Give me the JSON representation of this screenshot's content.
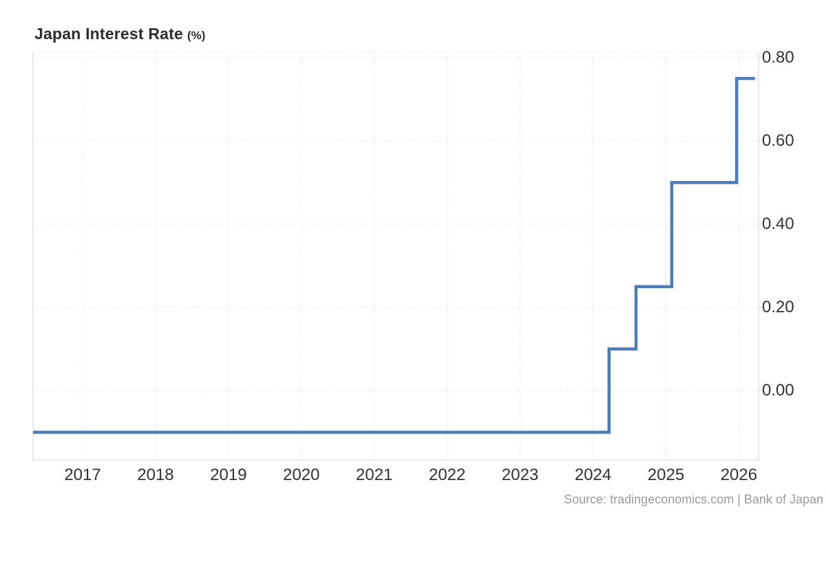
{
  "header": {
    "title": "Japan Interest Rate",
    "unit": "(%)"
  },
  "footer": {
    "source": "Source: tradingeconomics.com | Bank of Japan"
  },
  "chart_data": {
    "type": "line",
    "step": true,
    "title": "Japan Interest Rate (%)",
    "xlabel": "",
    "ylabel": "%",
    "legend": "none",
    "grid": true,
    "xlim": [
      2016.32,
      2026.27
    ],
    "ylim": [
      -0.167,
      0.813
    ],
    "x_ticks": [
      {
        "v": 2017,
        "label": "2017"
      },
      {
        "v": 2018,
        "label": "2018"
      },
      {
        "v": 2019,
        "label": "2019"
      },
      {
        "v": 2020,
        "label": "2020"
      },
      {
        "v": 2021,
        "label": "2021"
      },
      {
        "v": 2022,
        "label": "2022"
      },
      {
        "v": 2023,
        "label": "2023"
      },
      {
        "v": 2024,
        "label": "2024"
      },
      {
        "v": 2025,
        "label": "2025"
      },
      {
        "v": 2026,
        "label": "2026"
      }
    ],
    "y_ticks": [
      {
        "v": 0.8,
        "label": "0.80"
      },
      {
        "v": 0.6,
        "label": "0.60"
      },
      {
        "v": 0.4,
        "label": "0.40"
      },
      {
        "v": 0.2,
        "label": "0.20"
      },
      {
        "v": 0.0,
        "label": "0.00"
      }
    ],
    "series": [
      {
        "name": "Japan Interest Rate",
        "color": "#4f7cb8",
        "points": [
          [
            2016.32,
            -0.1
          ],
          [
            2024.22,
            -0.1
          ],
          [
            2024.22,
            0.1
          ],
          [
            2024.59,
            0.1
          ],
          [
            2024.59,
            0.25
          ],
          [
            2025.08,
            0.25
          ],
          [
            2025.08,
            0.5
          ],
          [
            2025.97,
            0.5
          ],
          [
            2025.97,
            0.75
          ],
          [
            2026.22,
            0.75
          ]
        ]
      }
    ],
    "rate_steps": [
      {
        "period": "mid-2016 to early 2024",
        "rate": -0.1
      },
      {
        "period": "Mar 2024",
        "rate": 0.1
      },
      {
        "period": "Aug 2024",
        "rate": 0.25
      },
      {
        "period": "Jan 2025",
        "rate": 0.5
      },
      {
        "period": "Dec 2025",
        "rate": 0.75
      }
    ],
    "colors": {
      "line": "#4f7cb8",
      "grid": "#e2e2e2",
      "border": "#d6d6d6",
      "tick_label": "#333333",
      "title": "#2d2d2d",
      "source": "#9a9a9a"
    }
  }
}
